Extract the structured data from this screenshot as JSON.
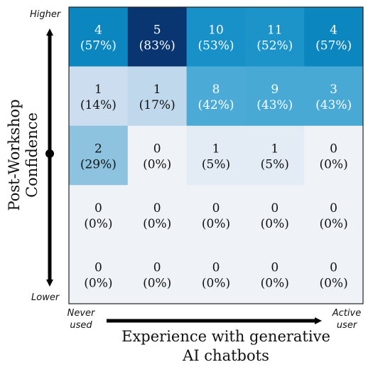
{
  "chart_data": {
    "type": "heatmap",
    "xlabel": [
      "Experience with generative",
      "AI chatbots"
    ],
    "ylabel": [
      "Post-Workshop",
      "Confidence"
    ],
    "x_end_labels": {
      "low": [
        "Never",
        "used"
      ],
      "high": [
        "Active",
        "user"
      ]
    },
    "y_end_labels": {
      "high": "Higher",
      "low": "Lower"
    },
    "grid": false,
    "rows": [
      {
        "values": [
          4,
          5,
          10,
          11,
          4
        ],
        "percents": [
          "(57%)",
          "(83%)",
          "(53%)",
          "(52%)",
          "(57%)"
        ]
      },
      {
        "values": [
          1,
          1,
          8,
          9,
          3
        ],
        "percents": [
          "(14%)",
          "(17%)",
          "(42%)",
          "(43%)",
          "(43%)"
        ]
      },
      {
        "values": [
          2,
          0,
          1,
          1,
          0
        ],
        "percents": [
          "(29%)",
          "(0%)",
          "(5%)",
          "(5%)",
          "(0%)"
        ]
      },
      {
        "values": [
          0,
          0,
          0,
          0,
          0
        ],
        "percents": [
          "(0%)",
          "(0%)",
          "(0%)",
          "(0%)",
          "(0%)"
        ]
      },
      {
        "values": [
          0,
          0,
          0,
          0,
          0
        ],
        "percents": [
          "(0%)",
          "(0%)",
          "(0%)",
          "(0%)",
          "(0%)"
        ]
      }
    ],
    "colormap": "Blues"
  }
}
